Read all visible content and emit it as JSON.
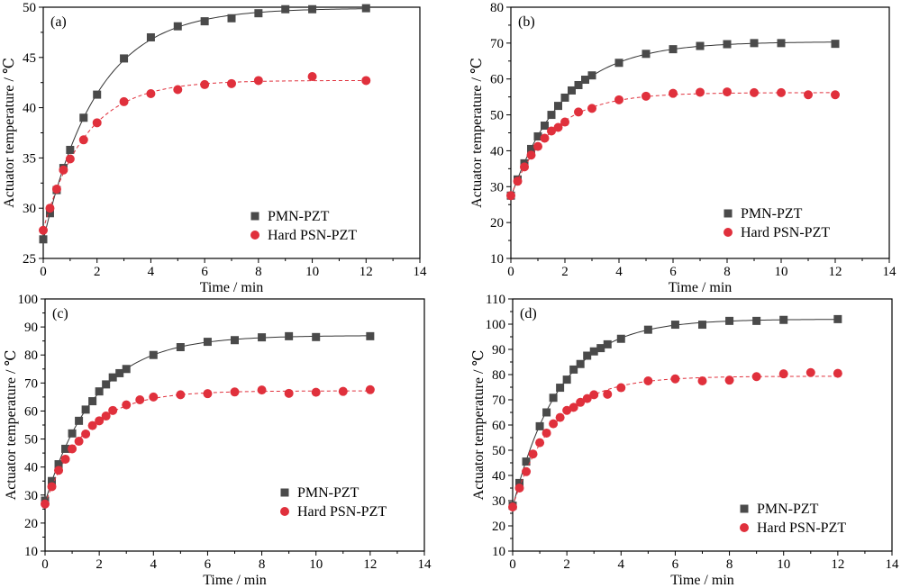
{
  "colors": {
    "pmn": "#4a4a4a",
    "psn": "#e0303c",
    "axis": "#000000"
  },
  "legend_labels": {
    "pmn": "PMN-PZT",
    "psn": "Hard PSN-PZT"
  },
  "chart_data": [
    {
      "panel_label": "(a)",
      "type": "scatter",
      "xlabel": "Time / min",
      "ylabel": "Actuator temperature / ℃",
      "xlim": [
        0,
        14
      ],
      "ylim": [
        25,
        50
      ],
      "xticks": [
        "0",
        "2",
        "4",
        "6",
        "8",
        "10",
        "12",
        "14"
      ],
      "yticks": [
        "25",
        "30",
        "35",
        "40",
        "45",
        "50"
      ],
      "legend_position": "lower-right",
      "series": [
        {
          "name": "PMN-PZT",
          "marker": "square",
          "fit_line": "solid",
          "x": [
            0,
            0.25,
            0.5,
            0.75,
            1,
            1.5,
            2,
            3,
            4,
            5,
            6,
            7,
            8,
            9,
            10,
            12
          ],
          "y": [
            26.9,
            29.5,
            31.8,
            34.0,
            35.8,
            39.0,
            41.3,
            44.9,
            47.0,
            48.1,
            48.6,
            48.9,
            49.4,
            49.8,
            49.8,
            49.9
          ]
        },
        {
          "name": "Hard PSN-PZT",
          "marker": "circle",
          "fit_line": "dashed",
          "x": [
            0,
            0.25,
            0.5,
            0.75,
            1,
            1.5,
            2,
            3,
            4,
            5,
            6,
            7,
            8,
            10,
            12
          ],
          "y": [
            27.8,
            30.0,
            31.9,
            33.8,
            34.9,
            36.8,
            38.5,
            40.6,
            41.4,
            41.8,
            42.3,
            42.4,
            42.7,
            43.1,
            42.7
          ]
        }
      ]
    },
    {
      "panel_label": "(b)",
      "type": "scatter",
      "xlabel": "Time / min",
      "ylabel": "Actuator temperature / ℃",
      "xlim": [
        0,
        14
      ],
      "ylim": [
        10,
        80
      ],
      "xticks": [
        "0",
        "2",
        "4",
        "6",
        "8",
        "10",
        "12",
        "14"
      ],
      "yticks": [
        "10",
        "20",
        "30",
        "40",
        "50",
        "60",
        "70",
        "80"
      ],
      "legend_position": "lower-right",
      "series": [
        {
          "name": "PMN-PZT",
          "marker": "square",
          "fit_line": "solid",
          "x": [
            0,
            0.25,
            0.5,
            0.75,
            1,
            1.25,
            1.5,
            1.75,
            2,
            2.25,
            2.5,
            2.75,
            3,
            4,
            5,
            6,
            7,
            8,
            9,
            10,
            12
          ],
          "y": [
            27.5,
            32.0,
            36.5,
            40.5,
            44.0,
            47.0,
            50.0,
            52.5,
            54.8,
            56.8,
            58.3,
            59.8,
            61.0,
            64.5,
            67.0,
            68.3,
            69.2,
            69.7,
            70.0,
            70.0,
            69.8
          ]
        },
        {
          "name": "Hard PSN-PZT",
          "marker": "circle",
          "fit_line": "dashed",
          "x": [
            0,
            0.25,
            0.5,
            0.75,
            1,
            1.25,
            1.5,
            1.75,
            2,
            2.5,
            3,
            4,
            5,
            6,
            7,
            8,
            9,
            10,
            11,
            12
          ],
          "y": [
            27.5,
            31.5,
            35.5,
            38.8,
            41.2,
            43.5,
            45.5,
            46.5,
            48.0,
            50.8,
            51.8,
            54.2,
            55.2,
            56.0,
            56.3,
            56.4,
            56.2,
            56.2,
            55.6,
            55.6
          ]
        }
      ]
    },
    {
      "panel_label": "(c)",
      "type": "scatter",
      "xlabel": "Time / min",
      "ylabel": "Actuator temperature / ℃",
      "xlim": [
        0,
        14
      ],
      "ylim": [
        10,
        100
      ],
      "xticks": [
        "0",
        "2",
        "4",
        "6",
        "8",
        "10",
        "12",
        "14"
      ],
      "yticks": [
        "10",
        "20",
        "30",
        "40",
        "50",
        "60",
        "70",
        "80",
        "90",
        "100"
      ],
      "legend_position": "lower-right",
      "series": [
        {
          "name": "PMN-PZT",
          "marker": "square",
          "fit_line": "solid",
          "x": [
            0,
            0.25,
            0.5,
            0.75,
            1,
            1.25,
            1.5,
            1.75,
            2,
            2.25,
            2.5,
            2.75,
            3,
            4,
            5,
            6,
            7,
            8,
            9,
            10,
            12
          ],
          "y": [
            28.0,
            35.0,
            41.0,
            46.5,
            52.0,
            56.5,
            60.5,
            63.5,
            67.0,
            69.5,
            72.0,
            73.5,
            75.0,
            80.0,
            82.8,
            84.7,
            85.3,
            86.3,
            86.7,
            86.4,
            86.7
          ]
        },
        {
          "name": "Hard PSN-PZT",
          "marker": "circle",
          "fit_line": "dashed",
          "x": [
            0,
            0.25,
            0.5,
            0.75,
            1,
            1.25,
            1.5,
            1.75,
            2,
            2.25,
            2.5,
            3,
            3.5,
            4,
            5,
            6,
            7,
            8,
            9,
            10,
            11,
            12
          ],
          "y": [
            26.8,
            33.0,
            38.8,
            42.8,
            46.5,
            49.2,
            51.8,
            54.8,
            56.5,
            58.2,
            60.2,
            62.2,
            64.0,
            65.0,
            65.8,
            66.2,
            66.8,
            67.5,
            66.3,
            66.7,
            67.0,
            67.6
          ]
        }
      ]
    },
    {
      "panel_label": "(d)",
      "type": "scatter",
      "xlabel": "Time / min",
      "ylabel": "Actuator temperature / ℃",
      "xlim": [
        0,
        14
      ],
      "ylim": [
        10,
        110
      ],
      "xticks": [
        "0",
        "2",
        "4",
        "6",
        "8",
        "10",
        "12",
        "14"
      ],
      "yticks": [
        "10",
        "20",
        "30",
        "40",
        "50",
        "60",
        "70",
        "80",
        "90",
        "100",
        "110"
      ],
      "legend_position": "lower-right",
      "series": [
        {
          "name": "PMN-PZT",
          "marker": "square",
          "fit_line": "solid",
          "x": [
            0,
            0.25,
            0.5,
            1,
            1.25,
            1.5,
            1.75,
            2,
            2.25,
            2.5,
            2.75,
            3,
            3.25,
            3.5,
            4,
            5,
            6,
            7,
            8,
            9,
            10,
            12
          ],
          "y": [
            28.0,
            37.0,
            45.5,
            59.5,
            65.0,
            70.8,
            74.8,
            78.0,
            82.0,
            84.2,
            87.5,
            89.2,
            90.5,
            92.0,
            94.2,
            97.8,
            99.8,
            99.8,
            101.3,
            101.3,
            101.7,
            102.0
          ]
        },
        {
          "name": "Hard PSN-PZT",
          "marker": "circle",
          "fit_line": "dashed",
          "x": [
            0,
            0.25,
            0.5,
            0.75,
            1,
            1.25,
            1.5,
            1.75,
            2,
            2.25,
            2.5,
            2.75,
            3,
            3.5,
            4,
            5,
            6,
            7,
            8,
            9,
            10,
            11,
            12
          ],
          "y": [
            27.5,
            35.0,
            41.5,
            48.5,
            53.0,
            56.8,
            60.5,
            63.0,
            65.8,
            67.0,
            69.0,
            70.5,
            72.0,
            72.2,
            74.8,
            77.5,
            78.3,
            77.5,
            77.8,
            79.2,
            80.3,
            80.8,
            80.5
          ]
        }
      ]
    }
  ]
}
